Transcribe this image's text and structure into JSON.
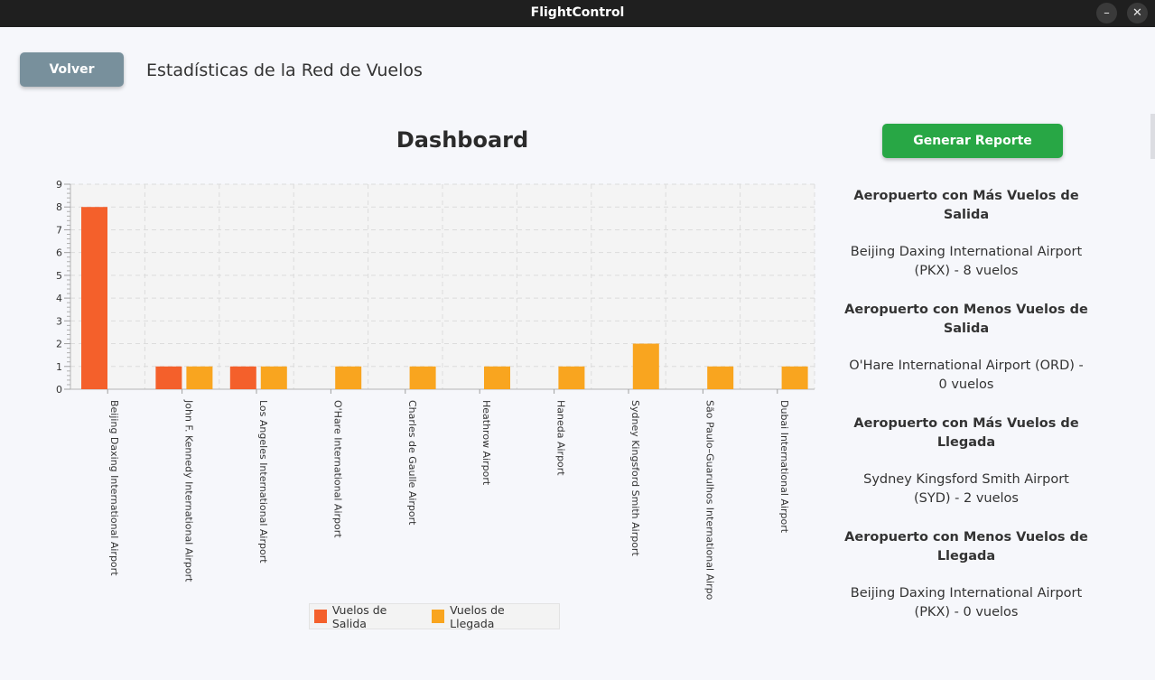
{
  "window": {
    "title": "FlightControl",
    "minimize_glyph": "–",
    "close_glyph": "✕"
  },
  "header": {
    "back_label": "Volver",
    "page_title": "Estadísticas de la Red de Vuelos"
  },
  "dashboard": {
    "title": "Dashboard",
    "report_button": "Generar Reporte"
  },
  "stats": [
    {
      "heading": "Aeropuerto con Más Vuelos de Salida",
      "value": "Beijing Daxing International Airport (PKX) - 8 vuelos"
    },
    {
      "heading": "Aeropuerto con Menos Vuelos de Salida",
      "value": "O'Hare International Airport (ORD) - 0 vuelos"
    },
    {
      "heading": "Aeropuerto con Más Vuelos de Llegada",
      "value": "Sydney Kingsford Smith Airport (SYD) - 2 vuelos"
    },
    {
      "heading": "Aeropuerto con Menos Vuelos de Llegada",
      "value": "Beijing Daxing International Airport (PKX) - 0 vuelos"
    }
  ],
  "chart_data": {
    "type": "bar",
    "title": "",
    "xlabel": "",
    "ylabel": "",
    "ylim": [
      0,
      9
    ],
    "yticks": [
      0,
      1,
      2,
      3,
      4,
      5,
      6,
      7,
      8,
      9
    ],
    "grid": true,
    "legend": "bottom",
    "categories": [
      "Beijing Daxing International Airport",
      "John F. Kennedy International Airport",
      "Los Angeles International Airport",
      "O'Hare International Airport",
      "Charles de Gaulle Airport",
      "Heathrow Airport",
      "Haneda Airport",
      "Sydney Kingsford Smith Airport",
      "São Paulo–Guarulhos International Airport",
      "Dubai International Airport"
    ],
    "series": [
      {
        "name": "Vuelos de Salida",
        "color": "#f4602b",
        "values": [
          8,
          1,
          1,
          0,
          0,
          0,
          0,
          0,
          0,
          0
        ]
      },
      {
        "name": "Vuelos de Llegada",
        "color": "#f9a51f",
        "values": [
          0,
          1,
          1,
          1,
          1,
          1,
          1,
          2,
          1,
          1
        ]
      }
    ]
  }
}
